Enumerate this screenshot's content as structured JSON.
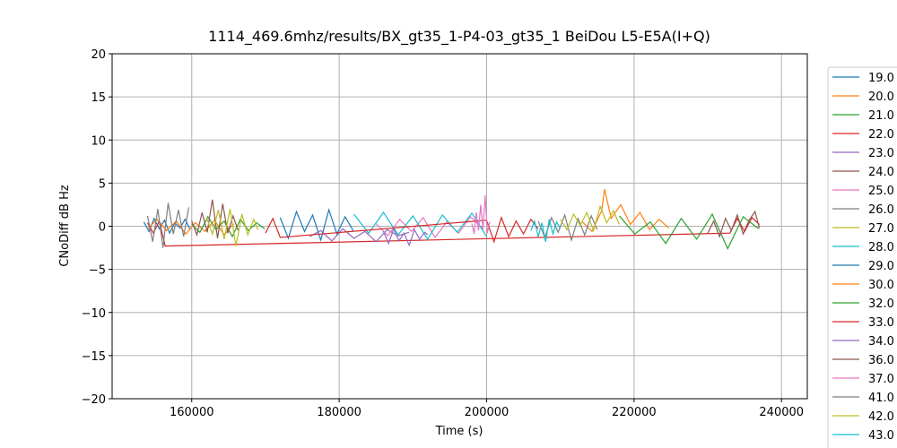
{
  "chart_data": {
    "type": "line",
    "title": "1114_469.6mhz/results/BX_gt35_1-P4-03_gt35_1 BeiDou L5-E5A(I+Q)",
    "x_label": "Time (s)",
    "y_label": "CNoDiff dB Hz",
    "xlim": [
      149200,
      243500
    ],
    "ylim": [
      -20,
      20
    ],
    "xticks": [
      160000,
      180000,
      200000,
      220000,
      240000
    ],
    "yticks": [
      {
        "value": -20,
        "label": "−20"
      },
      {
        "value": -15,
        "label": "−15"
      },
      {
        "value": -10,
        "label": "−10"
      },
      {
        "value": -5,
        "label": "−5"
      },
      0,
      5,
      10,
      15,
      20
    ],
    "grid": true,
    "series": [
      {
        "name": "19.0",
        "color": "#1f77b4",
        "x": [
          153500,
          154200,
          154900,
          155600,
          156300,
          157000,
          157700,
          158400,
          159100,
          159800
        ],
        "values": [
          0.5,
          -0.6,
          0.9,
          -0.3,
          0.7,
          -0.8,
          0.4,
          -0.2,
          0.8,
          -0.4
        ]
      },
      {
        "name": "20.0",
        "color": "#ff7f0e",
        "x": [
          154000,
          155300,
          156600,
          157900,
          159200,
          160500,
          161800,
          163100,
          164400,
          165700
        ],
        "values": [
          -0.3,
          0.8,
          -0.5,
          0.6,
          -0.9,
          0.4,
          -0.6,
          0.7,
          -1.0,
          0.3
        ]
      },
      {
        "name": "21.0",
        "color": "#2ca02c",
        "x": [
          160000,
          161100,
          162200,
          163300,
          164400,
          165500,
          166600,
          167700,
          168800,
          169900
        ],
        "values": [
          0.2,
          -0.7,
          1.1,
          -0.4,
          0.6,
          -1.2,
          0.8,
          -0.5,
          0.4,
          -0.3
        ]
      },
      {
        "name": "22.0",
        "color": "#d62728",
        "x": [
          154000,
          154800,
          155600,
          156400,
          233000,
          234000,
          235000,
          236000,
          237000
        ],
        "values": [
          0.4,
          -0.8,
          0.6,
          -2.3,
          -0.8,
          0.9,
          -0.6,
          1.0,
          0.2
        ]
      },
      {
        "name": "23.0",
        "color": "#9467bd",
        "x": [
          176000,
          177500,
          179000,
          180500,
          182000,
          183500,
          185000,
          186500,
          188000,
          189500
        ],
        "values": [
          -1.2,
          -0.5,
          -1.7,
          -0.3,
          -1.4,
          -0.6,
          -1.8,
          -0.4,
          -1.1,
          -0.7
        ]
      },
      {
        "name": "24.0",
        "color": "#8c564b",
        "x": [
          160000,
          160700,
          161400,
          162100,
          162800,
          163500,
          164200,
          164900,
          165600,
          166300
        ],
        "values": [
          0.6,
          -1.0,
          1.6,
          -0.7,
          3.1,
          -1.4,
          2.6,
          -0.8,
          1.2,
          -0.5
        ]
      },
      {
        "name": "25.0",
        "color": "#e377c2",
        "x": [
          185000,
          186600,
          188200,
          189800,
          191400,
          193000,
          194600,
          196200,
          197800,
          199400
        ],
        "values": [
          0.3,
          -1.1,
          0.8,
          -0.6,
          1.0,
          -1.3,
          0.5,
          -0.8,
          1.1,
          -0.2
        ]
      },
      {
        "name": "26.0",
        "color": "#7f7f7f",
        "x": [
          154000,
          154700,
          155400,
          156100,
          156800,
          157500,
          158200,
          158900,
          159600
        ],
        "values": [
          1.2,
          -1.8,
          2.0,
          -2.5,
          2.7,
          -0.9,
          1.9,
          -1.2,
          2.2
        ]
      },
      {
        "name": "27.0",
        "color": "#bcbd22",
        "x": [
          162000,
          162800,
          163600,
          164400,
          165200,
          166000,
          166800,
          167600,
          168400,
          169000
        ],
        "values": [
          1.0,
          -0.9,
          1.9,
          -1.5,
          2.0,
          -2.3,
          1.4,
          -1.0,
          0.8,
          -0.4
        ]
      },
      {
        "name": "28.0",
        "color": "#17becf",
        "x": [
          182000,
          184000,
          186000,
          188000,
          190000,
          192000,
          194000,
          196000,
          198000,
          200000
        ],
        "values": [
          1.4,
          -0.8,
          1.6,
          -1.0,
          1.2,
          -1.5,
          1.3,
          -0.7,
          1.5,
          -1.2
        ]
      },
      {
        "name": "29.0",
        "color": "#1f77b4",
        "x": [
          172000,
          173100,
          174200,
          175300,
          176400,
          177500,
          178600,
          179700,
          180800,
          181900
        ],
        "values": [
          1.0,
          -1.4,
          1.7,
          -0.6,
          1.3,
          -1.6,
          1.9,
          -0.9,
          1.1,
          -0.5
        ]
      },
      {
        "name": "30.0",
        "color": "#ff7f0e",
        "x": [
          213000,
          214300,
          215600,
          216000,
          216900,
          218200,
          219500,
          220800,
          222100,
          223400,
          224700
        ],
        "values": [
          0.5,
          -0.6,
          1.8,
          4.3,
          0.9,
          2.5,
          0.2,
          1.6,
          -0.4,
          0.8,
          -0.2
        ]
      },
      {
        "name": "32.0",
        "color": "#2ca02c",
        "x": [
          218000,
          220100,
          222200,
          224300,
          226400,
          228500,
          230600,
          232700,
          234800,
          236900
        ],
        "values": [
          1.2,
          -0.9,
          0.5,
          -2.0,
          0.9,
          -1.5,
          1.4,
          -2.6,
          1.1,
          -0.3
        ]
      },
      {
        "name": "33.0",
        "color": "#d62728",
        "x": [
          170000,
          171000,
          172000,
          200000,
          201000,
          202000,
          203000,
          204000,
          205000,
          206000,
          207000
        ],
        "values": [
          -0.8,
          0.9,
          -1.3,
          0.7,
          -1.8,
          1.0,
          -1.2,
          0.6,
          -0.9,
          0.8,
          -0.3
        ]
      },
      {
        "name": "34.0",
        "color": "#9467bd",
        "x": [
          186000,
          186700,
          187400,
          188100,
          188800,
          189500,
          190200,
          190900,
          191600,
          192000
        ],
        "values": [
          -0.6,
          -2.0,
          -0.3,
          -1.7,
          -0.8,
          -2.2,
          -0.4,
          -1.5,
          -0.7,
          -1.0
        ]
      },
      {
        "name": "36.0",
        "color": "#8c564b",
        "x": [
          230000,
          230800,
          231600,
          232400,
          233200,
          234000,
          234800,
          235600,
          236400,
          237000
        ],
        "values": [
          -0.8,
          0.6,
          -1.2,
          0.9,
          -0.5,
          1.3,
          -0.9,
          0.7,
          1.7,
          -0.2
        ]
      },
      {
        "name": "37.0",
        "color": "#e377c2",
        "x": [
          198000,
          198300,
          198600,
          198900,
          199200,
          199500,
          199800,
          200100,
          200400
        ],
        "values": [
          0.3,
          -0.9,
          1.6,
          -0.5,
          2.5,
          -0.4,
          3.6,
          -0.8,
          0.5
        ]
      },
      {
        "name": "41.0",
        "color": "#7f7f7f",
        "x": [
          207000,
          207900,
          208800,
          209700,
          210600,
          211500,
          212400,
          213300,
          214200,
          215000
        ],
        "values": [
          0.6,
          -1.3,
          1.0,
          -0.7,
          1.3,
          -1.6,
          0.9,
          -1.0,
          1.2,
          -0.4
        ]
      },
      {
        "name": "42.0",
        "color": "#bcbd22",
        "x": [
          210000,
          210900,
          211800,
          212700,
          213600,
          214500,
          215400,
          216300,
          217200,
          218000
        ],
        "values": [
          0.8,
          -0.4,
          1.4,
          0.1,
          1.6,
          -0.5,
          2.3,
          0.4,
          1.8,
          0.2
        ]
      },
      {
        "name": "43.0",
        "color": "#17becf",
        "x": [
          206000,
          206500,
          207000,
          207500,
          208000,
          208500,
          209000,
          209500,
          210000
        ],
        "values": [
          -0.5,
          0.6,
          -1.2,
          0.4,
          -1.8,
          0.8,
          -0.9,
          0.5,
          -0.3
        ]
      }
    ]
  }
}
